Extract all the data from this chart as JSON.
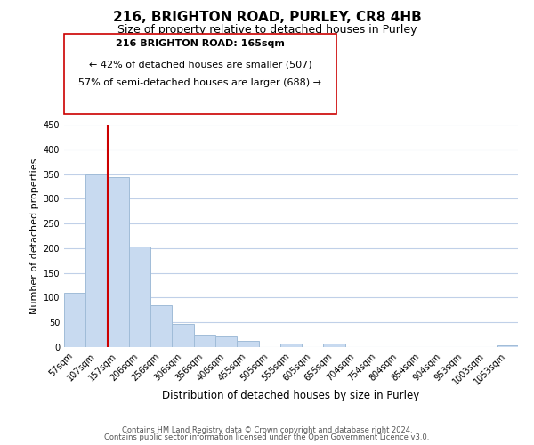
{
  "title": "216, BRIGHTON ROAD, PURLEY, CR8 4HB",
  "subtitle": "Size of property relative to detached houses in Purley",
  "xlabel": "Distribution of detached houses by size in Purley",
  "ylabel": "Number of detached properties",
  "bar_labels": [
    "57sqm",
    "107sqm",
    "157sqm",
    "206sqm",
    "256sqm",
    "306sqm",
    "356sqm",
    "406sqm",
    "455sqm",
    "505sqm",
    "555sqm",
    "605sqm",
    "655sqm",
    "704sqm",
    "754sqm",
    "804sqm",
    "854sqm",
    "904sqm",
    "953sqm",
    "1003sqm",
    "1053sqm"
  ],
  "bar_heights": [
    110,
    350,
    343,
    203,
    85,
    47,
    25,
    22,
    12,
    0,
    8,
    0,
    7,
    0,
    0,
    0,
    0,
    0,
    0,
    0,
    4
  ],
  "bar_color": "#c8daf0",
  "bar_edge_color": "#a0bcd8",
  "vline_color": "#cc0000",
  "ylim": [
    0,
    450
  ],
  "yticks": [
    0,
    50,
    100,
    150,
    200,
    250,
    300,
    350,
    400,
    450
  ],
  "annotation_title": "216 BRIGHTON ROAD: 165sqm",
  "annotation_line1": "← 42% of detached houses are smaller (507)",
  "annotation_line2": "57% of semi-detached houses are larger (688) →",
  "annotation_box_color": "#ffffff",
  "annotation_box_edge": "#cc0000",
  "footer_line1": "Contains HM Land Registry data © Crown copyright and database right 2024.",
  "footer_line2": "Contains public sector information licensed under the Open Government Licence v3.0.",
  "background_color": "#ffffff",
  "grid_color": "#c0d0e8",
  "title_fontsize": 11,
  "subtitle_fontsize": 9,
  "ylabel_fontsize": 8,
  "xlabel_fontsize": 8.5,
  "tick_fontsize": 7,
  "footer_fontsize": 6
}
